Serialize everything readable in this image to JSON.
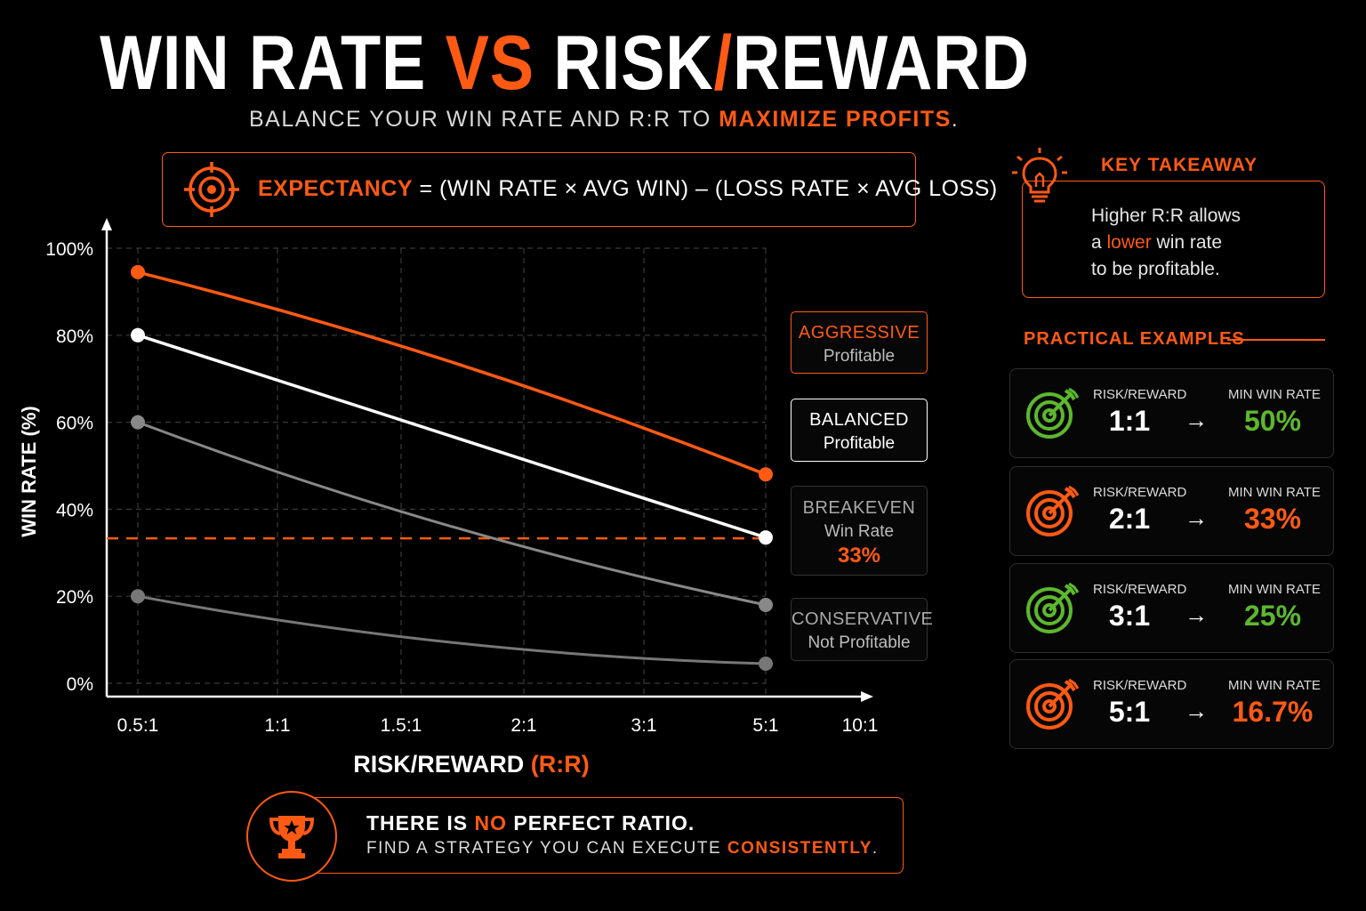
{
  "header": {
    "title_a": "WIN RATE ",
    "title_b": "VS",
    "title_c": " RISK",
    "title_slash": "/",
    "title_d": "REWARD",
    "subtitle_a": "BALANCE YOUR WIN RATE AND R:R TO ",
    "subtitle_b": "MAXIMIZE PROFITS",
    "subtitle_c": "."
  },
  "formula": {
    "label": "EXPECTANCY",
    "text": " = (WIN RATE × AVG WIN) – (LOSS RATE × AVG LOSS)",
    "icon": "target-icon"
  },
  "chart_data": {
    "type": "line",
    "xlabel_a": "RISK/REWARD ",
    "xlabel_b": "(R:R)",
    "ylabel": "WIN RATE (%)",
    "categories": [
      "0.5:1",
      "1:1",
      "1.5:1",
      "2:1",
      "3:1",
      "5:1",
      "10:1"
    ],
    "y_ticks": [
      "0%",
      "20%",
      "40%",
      "60%",
      "80%",
      "100%"
    ],
    "ylim": [
      0,
      100
    ],
    "grid": true,
    "series": [
      {
        "name": "Aggressive",
        "color": "#ff5a14",
        "x": [
          "0.5:1",
          "5:1"
        ],
        "values": [
          94.5,
          48.0
        ]
      },
      {
        "name": "Balanced",
        "color": "#ffffff",
        "x": [
          "0.5:1",
          "5:1"
        ],
        "values": [
          80.0,
          33.5
        ]
      },
      {
        "name": "Breakeven",
        "color": "#888888",
        "x": [
          "0.5:1",
          "5:1"
        ],
        "values": [
          60.0,
          18.0
        ]
      },
      {
        "name": "Conservative",
        "color": "#777777",
        "x": [
          "0.5:1",
          "5:1"
        ],
        "values": [
          20.0,
          4.5
        ]
      }
    ],
    "breakeven_line": {
      "value": 33.3,
      "color": "#ff5a14",
      "style": "dashed"
    }
  },
  "legend": {
    "aggressive": {
      "title": "AGGRESSIVE",
      "sub": "Profitable"
    },
    "balanced": {
      "title": "BALANCED",
      "sub": "Profitable"
    },
    "breakeven": {
      "title": "BREAKEVEN",
      "sub": "Win Rate",
      "value": "33%"
    },
    "conservative": {
      "title": "CONSERVATIVE",
      "sub": "Not Profitable"
    }
  },
  "takeaway": {
    "heading": "KEY TAKEAWAY",
    "line1": "Higher R:R allows",
    "line2_a": "a ",
    "line2_b": "lower",
    "line2_c": " win rate",
    "line3": "to be profitable.",
    "icon": "lightbulb-icon"
  },
  "examples": {
    "heading": "PRACTICAL EXAMPLES",
    "rr_label": "RISK/REWARD",
    "mw_label": "MIN WIN RATE",
    "arrow": "→",
    "items": [
      {
        "rr": "1:1",
        "min_win": "50%",
        "color": "#5cb82e"
      },
      {
        "rr": "2:1",
        "min_win": "33%",
        "color": "#ff5a14"
      },
      {
        "rr": "3:1",
        "min_win": "25%",
        "color": "#5cb82e"
      },
      {
        "rr": "5:1",
        "min_win": "16.7%",
        "color": "#ff5a14"
      }
    ]
  },
  "footer": {
    "line1_a": "THERE IS ",
    "line1_b": "NO",
    "line1_c": " PERFECT RATIO.",
    "line2_a": "FIND A STRATEGY YOU CAN EXECUTE ",
    "line2_b": "CONSISTENTLY",
    "line2_c": ".",
    "icon": "trophy-icon"
  }
}
